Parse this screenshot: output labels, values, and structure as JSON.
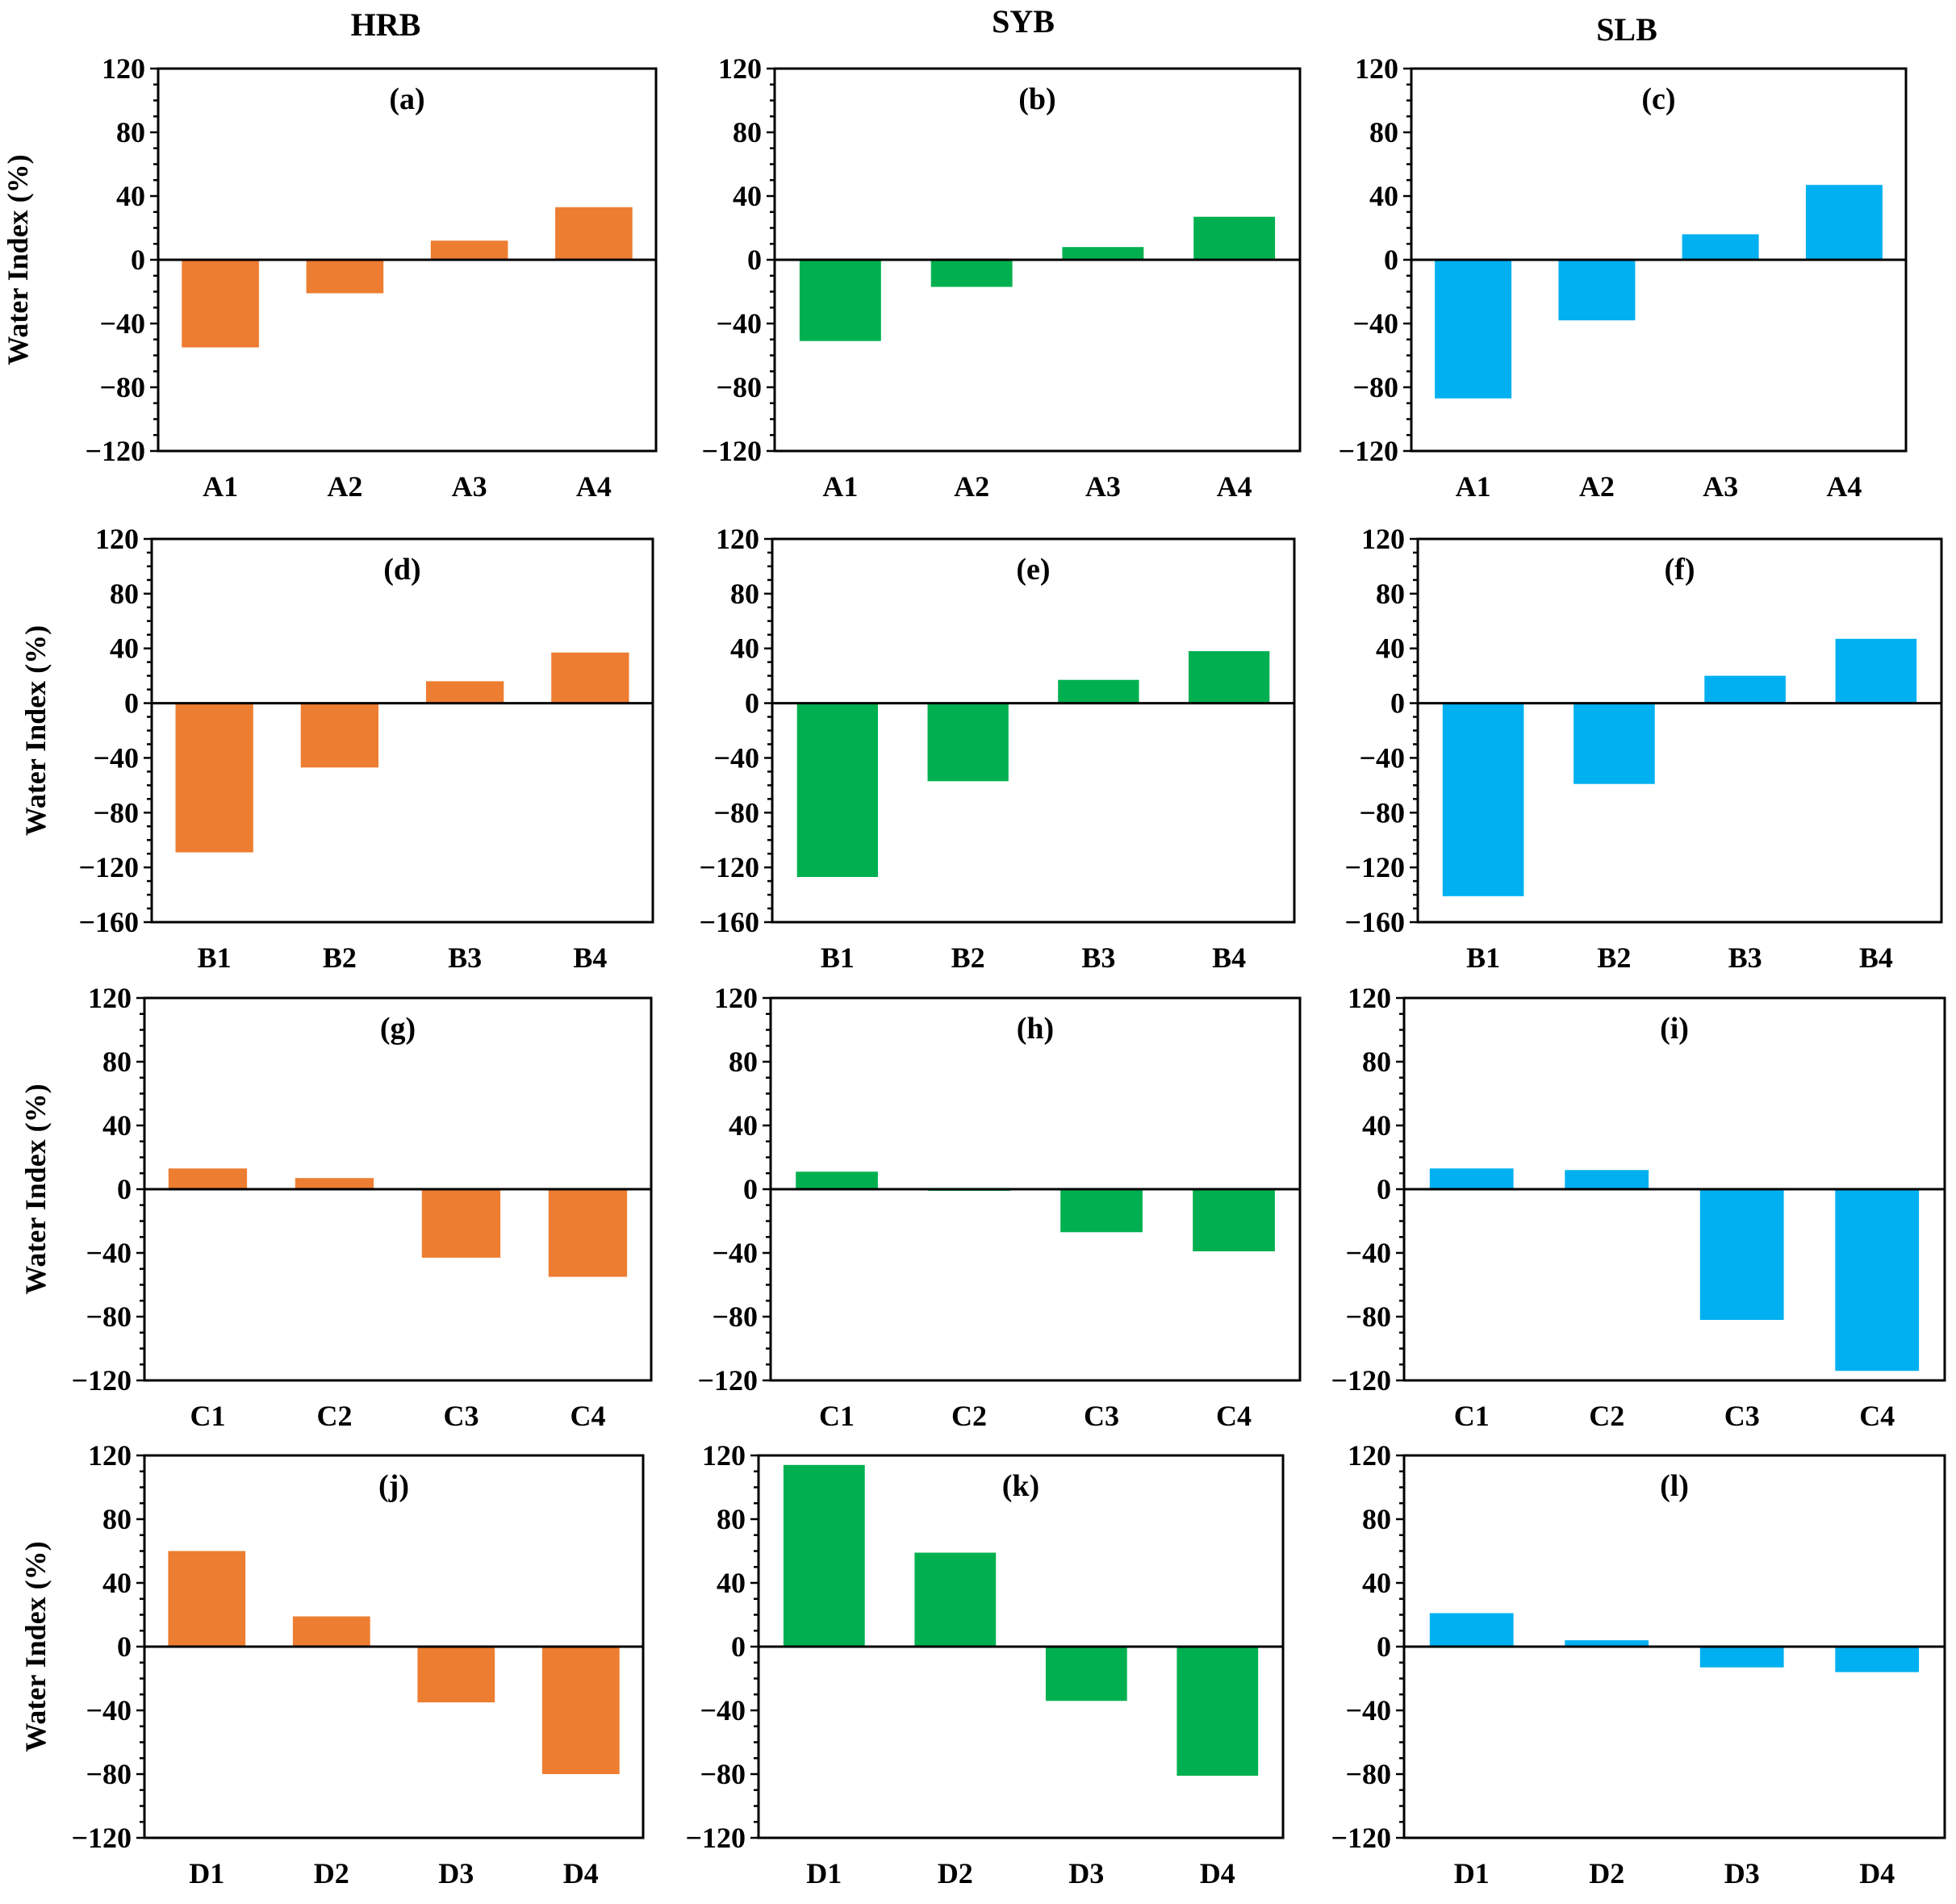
{
  "column_headers": [
    "HRB",
    "SYB",
    "SLB"
  ],
  "colors": {
    "HRB": "#ED7D31",
    "SYB": "#00B050",
    "SLB": "#00B0F0"
  },
  "chart_data": [
    {
      "type": "bar",
      "id": "a",
      "title": "(a)",
      "basin": "HRB",
      "ylabel": "Water Index (%)",
      "categories": [
        "A1",
        "A2",
        "A3",
        "A4"
      ],
      "values": [
        -55,
        -21,
        12,
        33
      ],
      "ylim": [
        -120,
        120
      ],
      "yticks": [
        120,
        80,
        40,
        0,
        -40,
        -80,
        -120
      ]
    },
    {
      "type": "bar",
      "id": "b",
      "title": "(b)",
      "basin": "SYB",
      "ylabel": "",
      "categories": [
        "A1",
        "A2",
        "A3",
        "A4"
      ],
      "values": [
        -51,
        -17,
        8,
        27
      ],
      "ylim": [
        -120,
        120
      ],
      "yticks": [
        120,
        80,
        40,
        0,
        -40,
        -80,
        -120
      ]
    },
    {
      "type": "bar",
      "id": "c",
      "title": "(c)",
      "basin": "SLB",
      "ylabel": "",
      "categories": [
        "A1",
        "A2",
        "A3",
        "A4"
      ],
      "values": [
        -87,
        -38,
        16,
        47
      ],
      "ylim": [
        -120,
        120
      ],
      "yticks": [
        120,
        80,
        40,
        0,
        -40,
        -80,
        -120
      ]
    },
    {
      "type": "bar",
      "id": "d",
      "title": "(d)",
      "basin": "HRB",
      "ylabel": "Water Index (%)",
      "categories": [
        "B1",
        "B2",
        "B3",
        "B4"
      ],
      "values": [
        -109,
        -47,
        16,
        37
      ],
      "ylim": [
        -160,
        120
      ],
      "yticks": [
        120,
        80,
        40,
        0,
        -40,
        -80,
        -120,
        -160
      ]
    },
    {
      "type": "bar",
      "id": "e",
      "title": "(e)",
      "basin": "SYB",
      "ylabel": "",
      "categories": [
        "B1",
        "B2",
        "B3",
        "B4"
      ],
      "values": [
        -127,
        -57,
        17,
        38
      ],
      "ylim": [
        -160,
        120
      ],
      "yticks": [
        120,
        80,
        40,
        0,
        -40,
        -80,
        -120,
        -160
      ]
    },
    {
      "type": "bar",
      "id": "f",
      "title": "(f)",
      "basin": "SLB",
      "ylabel": "",
      "categories": [
        "B1",
        "B2",
        "B3",
        "B4"
      ],
      "values": [
        -141,
        -59,
        20,
        47
      ],
      "ylim": [
        -160,
        120
      ],
      "yticks": [
        120,
        80,
        40,
        0,
        -40,
        -80,
        -120,
        -160
      ]
    },
    {
      "type": "bar",
      "id": "g",
      "title": "(g)",
      "basin": "HRB",
      "ylabel": "Water Index (%)",
      "categories": [
        "C1",
        "C2",
        "C3",
        "C4"
      ],
      "values": [
        13,
        7,
        -43,
        -55
      ],
      "ylim": [
        -120,
        120
      ],
      "yticks": [
        120,
        80,
        40,
        0,
        -40,
        -80,
        -120
      ]
    },
    {
      "type": "bar",
      "id": "h",
      "title": "(h)",
      "basin": "SYB",
      "ylabel": "",
      "categories": [
        "C1",
        "C2",
        "C3",
        "C4"
      ],
      "values": [
        11,
        -1,
        -27,
        -39
      ],
      "ylim": [
        -120,
        120
      ],
      "yticks": [
        120,
        80,
        40,
        0,
        -40,
        -80,
        -120
      ]
    },
    {
      "type": "bar",
      "id": "i",
      "title": "(i)",
      "basin": "SLB",
      "ylabel": "",
      "categories": [
        "C1",
        "C2",
        "C3",
        "C4"
      ],
      "values": [
        13,
        12,
        -82,
        -114
      ],
      "ylim": [
        -120,
        120
      ],
      "yticks": [
        120,
        80,
        40,
        0,
        -40,
        -80,
        -120
      ]
    },
    {
      "type": "bar",
      "id": "j",
      "title": "(j)",
      "basin": "HRB",
      "ylabel": "Water Index (%)",
      "categories": [
        "D1",
        "D2",
        "D3",
        "D4"
      ],
      "values": [
        60,
        19,
        -35,
        -80
      ],
      "ylim": [
        -120,
        120
      ],
      "yticks": [
        120,
        80,
        40,
        0,
        -40,
        -80,
        -120
      ]
    },
    {
      "type": "bar",
      "id": "k",
      "title": "(k)",
      "basin": "SYB",
      "ylabel": "",
      "categories": [
        "D1",
        "D2",
        "D3",
        "D4"
      ],
      "values": [
        114,
        59,
        -34,
        -81
      ],
      "ylim": [
        -120,
        120
      ],
      "yticks": [
        120,
        80,
        40,
        0,
        -40,
        -80,
        -120
      ]
    },
    {
      "type": "bar",
      "id": "l",
      "title": "(l)",
      "basin": "SLB",
      "ylabel": "",
      "categories": [
        "D1",
        "D2",
        "D3",
        "D4"
      ],
      "values": [
        21,
        4,
        -13,
        -16
      ],
      "ylim": [
        -120,
        120
      ],
      "yticks": [
        120,
        80,
        40,
        0,
        -40,
        -80,
        -120
      ]
    }
  ]
}
